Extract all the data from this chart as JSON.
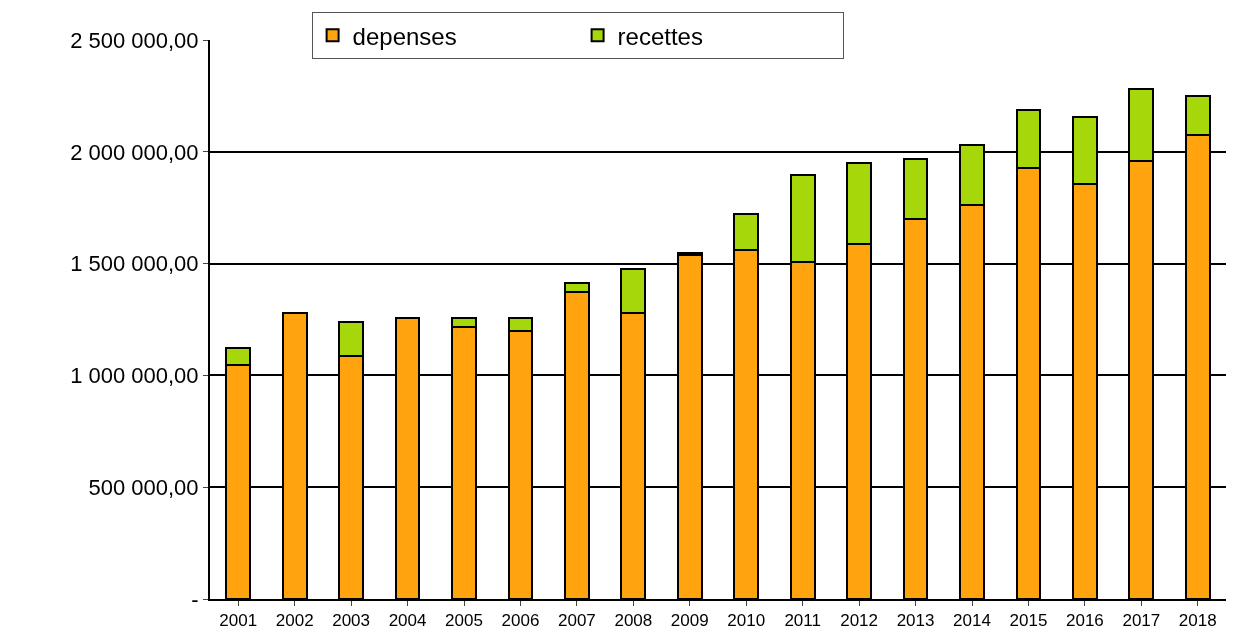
{
  "chart_data": {
    "type": "bar",
    "stacked": true,
    "categories": [
      "2001",
      "2002",
      "2003",
      "2004",
      "2005",
      "2006",
      "2007",
      "2008",
      "2009",
      "2010",
      "2011",
      "2012",
      "2013",
      "2014",
      "2015",
      "2016",
      "2017",
      "2018"
    ],
    "series": [
      {
        "name": "depenses",
        "color": "#ffa30f",
        "values": [
          1045000,
          1280000,
          1085000,
          1255000,
          1215000,
          1200000,
          1375000,
          1280000,
          1538000,
          1560000,
          1505000,
          1587000,
          1700000,
          1762000,
          1927000,
          1855000,
          1958000,
          2076000
        ]
      },
      {
        "name": "recettes",
        "color": "#a6d70a",
        "values": [
          78000,
          null,
          152000,
          null,
          40000,
          55000,
          40000,
          197000,
          8000,
          162000,
          392000,
          362000,
          267000,
          270000,
          258000,
          300000,
          323000,
          175000
        ]
      }
    ],
    "ylim": [
      0,
      2500000
    ],
    "yticks": [
      {
        "value": 0,
        "label": "-"
      },
      {
        "value": 500000,
        "label": "500 000,00"
      },
      {
        "value": 1000000,
        "label": "1 000 000,00"
      },
      {
        "value": 1500000,
        "label": "1 500 000,00"
      },
      {
        "value": 2000000,
        "label": "2 000 000,00"
      },
      {
        "value": 2500000,
        "label": "2 500 000,00"
      }
    ],
    "grid": "y",
    "legend": "top left"
  }
}
